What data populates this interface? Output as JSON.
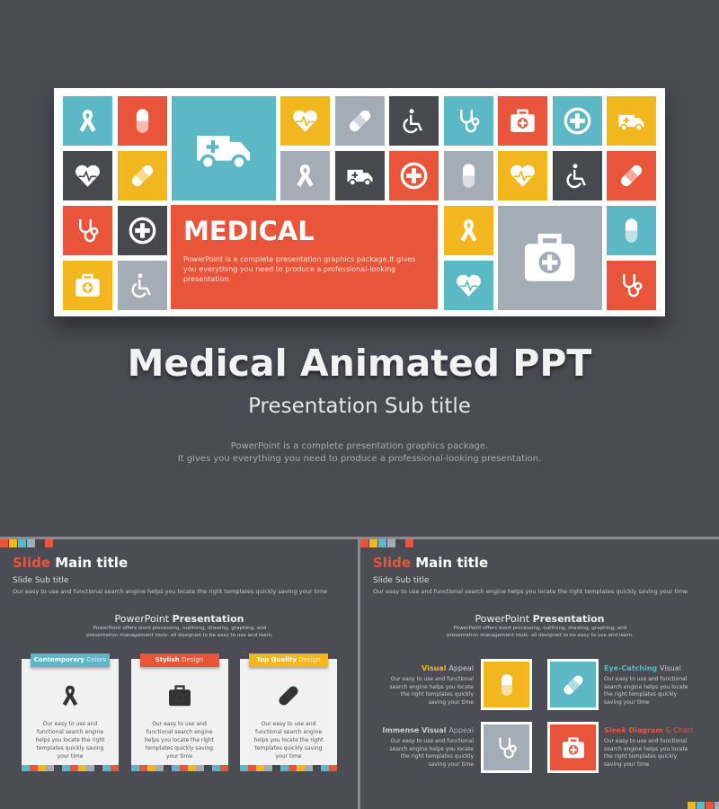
{
  "hero": {
    "banner_title": "MEDICAL",
    "banner_text": "PowerPoint is a complete presentation graphics package.It gives you everything you need to produce a professional-looking presentation.",
    "title": "Medical Animated PPT",
    "subtitle": "Presentation Sub title",
    "description": [
      "PowerPoint is a complete presentation graphics package.",
      "It gives you everything you need to produce a professional-looking presentation."
    ]
  },
  "slides": [
    {
      "title": [
        "Slide",
        "Main title"
      ],
      "subtitle": "Slide Sub title",
      "intro": "Our easy to use and functional search engine helps you locate the right templates quickly saving your time",
      "section_title": [
        "PowerPoint",
        "Presentation"
      ],
      "section_text": "PowerPoint offers word processing, outlining, drawing, graphing, and presentation management tools- all designed to be easy to use and learn.",
      "cards": [
        {
          "label": [
            "Contemporary",
            "Colors"
          ],
          "text": "Our easy to use and functional search engine helps you locate the right templates quickly saving your time"
        },
        {
          "label": [
            "Stylish",
            "Design"
          ],
          "text": "Our easy to use and functional search engine helps you locate the right templates quickly saving your time"
        },
        {
          "label": [
            "Top Quality",
            "Design"
          ],
          "text": "Our easy to use and functional search engine helps you locate the right templates quickly saving your time"
        }
      ]
    },
    {
      "title": [
        "Slide",
        "Main title"
      ],
      "subtitle": "Slide Sub title",
      "intro": "Our easy to use and functional search engine helps you locate the right templates quickly saving your time",
      "section_title": [
        "PowerPoint",
        "Presentation"
      ],
      "section_text": "PowerPoint offers word processing, outlining, drawing, graphing, and presentation management tools- all designed to be easy to use and learn.",
      "features": [
        {
          "label": [
            "Visual",
            "Appeal"
          ],
          "text": "Our easy to use and functional search engine helps you locate the right templates quickly saving your time"
        },
        {
          "label": [
            "Eye-Catching",
            "Visual"
          ],
          "text": "Our easy to use and functional search engine helps you locate the right templates quickly saving your time"
        },
        {
          "label": [
            "Immense Visual",
            "Appeal"
          ],
          "text": "Our easy to use and functional search engine helps you locate the right templates quickly saving your time"
        },
        {
          "label": [
            "Sleek Diagram",
            "& Chart"
          ],
          "text": "Our easy to use and functional search engine helps you locate the right templates quickly saving your time"
        }
      ]
    }
  ]
}
